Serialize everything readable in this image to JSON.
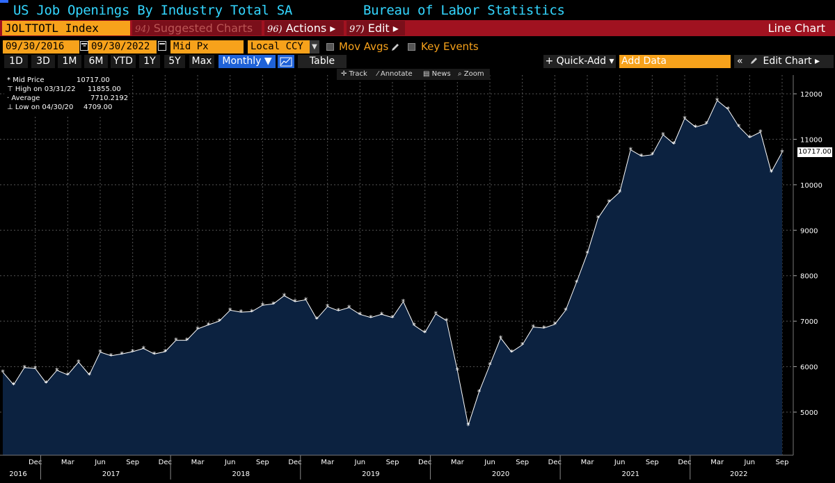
{
  "title": {
    "left": "US Job Openings By Industry Total SA",
    "right": "Bureau of Labor Statistics"
  },
  "toolbar": {
    "ticker": "JOLTTOTL Index",
    "suggested_num": "94)",
    "suggested_label": "Suggested Charts",
    "actions_num": "96)",
    "actions_label": "Actions ▸",
    "edit_num": "97)",
    "edit_label": "Edit ▸",
    "chart_type": "Line Chart"
  },
  "controls": {
    "start_date": "09/30/2016",
    "end_date": "09/30/2022",
    "price_field": "Mid Px",
    "currency": "Local CCY",
    "mov_avgs": "Mov Avgs",
    "key_events": "Key Events"
  },
  "periods": [
    "1D",
    "3D",
    "1M",
    "6M",
    "YTD",
    "1Y",
    "5Y",
    "Max"
  ],
  "frequency": "Monthly ▼",
  "table_label": "Table",
  "quick_add": "+ Quick-Add ▾",
  "add_data_placeholder": "Add Data",
  "edit_chart": "Edit Chart ▸",
  "edit_chart_collapse": "«",
  "tools": {
    "track": "Track",
    "annotate": "Annotate",
    "news": "News",
    "zoom": "Zoom"
  },
  "legend": {
    "mid_label": "Mid Price",
    "mid_value": "10717.00",
    "high_label": "High on 03/31/22",
    "high_value": "11855.00",
    "avg_label": "Average",
    "avg_value": "7710.2192",
    "low_label": "Low on 04/30/20",
    "low_value": "4709.00"
  },
  "last_value": "10717.00",
  "colors": {
    "accent_blue": "#1f62d8",
    "title_cyan": "#33d6ff",
    "bar_red": "#a01220",
    "field_orange": "#f7a21b",
    "area_fill": "#0c2240"
  },
  "chart_data": {
    "type": "area",
    "y_ticks": [
      5000,
      6000,
      7000,
      8000,
      9000,
      10000,
      11000,
      12000
    ],
    "ylim": [
      4300,
      12300
    ],
    "x_tick_labels": [
      "Dec",
      "Mar",
      "Jun",
      "Sep",
      "Dec",
      "Mar",
      "Jun",
      "Sep",
      "Dec",
      "Mar",
      "Jun",
      "Sep",
      "Dec",
      "Mar",
      "Jun",
      "Sep",
      "Dec",
      "Mar",
      "Jun",
      "Sep",
      "Dec",
      "Mar",
      "Jun",
      "Sep"
    ],
    "year_labels": [
      "2016",
      "2017",
      "2018",
      "2019",
      "2020",
      "2021",
      "2022"
    ],
    "x": [
      "2016-09",
      "2016-10",
      "2016-11",
      "2016-12",
      "2017-01",
      "2017-02",
      "2017-03",
      "2017-04",
      "2017-05",
      "2017-06",
      "2017-07",
      "2017-08",
      "2017-09",
      "2017-10",
      "2017-11",
      "2017-12",
      "2018-01",
      "2018-02",
      "2018-03",
      "2018-04",
      "2018-05",
      "2018-06",
      "2018-07",
      "2018-08",
      "2018-09",
      "2018-10",
      "2018-11",
      "2018-12",
      "2019-01",
      "2019-02",
      "2019-03",
      "2019-04",
      "2019-05",
      "2019-06",
      "2019-07",
      "2019-08",
      "2019-09",
      "2019-10",
      "2019-11",
      "2019-12",
      "2020-01",
      "2020-02",
      "2020-03",
      "2020-04",
      "2020-05",
      "2020-06",
      "2020-07",
      "2020-08",
      "2020-09",
      "2020-10",
      "2020-11",
      "2020-12",
      "2021-01",
      "2021-02",
      "2021-03",
      "2021-04",
      "2021-05",
      "2021-06",
      "2021-07",
      "2021-08",
      "2021-09",
      "2021-10",
      "2021-11",
      "2021-12",
      "2022-01",
      "2022-02",
      "2022-03",
      "2022-04",
      "2022-05",
      "2022-06",
      "2022-07",
      "2022-08",
      "2022-09"
    ],
    "values": [
      5880,
      5600,
      5980,
      5960,
      5640,
      5920,
      5820,
      6100,
      5820,
      6320,
      6240,
      6280,
      6330,
      6400,
      6280,
      6330,
      6580,
      6580,
      6830,
      6920,
      7000,
      7240,
      7200,
      7210,
      7350,
      7380,
      7560,
      7430,
      7470,
      7050,
      7320,
      7230,
      7300,
      7150,
      7080,
      7150,
      7080,
      7430,
      6910,
      6750,
      7160,
      7010,
      5920,
      4709,
      5440,
      6040,
      6630,
      6320,
      6480,
      6870,
      6850,
      6930,
      7240,
      7850,
      8490,
      9270,
      9620,
      9840,
      10770,
      10630,
      10660,
      11100,
      10900,
      11460,
      11270,
      11340,
      11855,
      11660,
      11280,
      11040,
      11160,
      10280,
      10717
    ]
  }
}
